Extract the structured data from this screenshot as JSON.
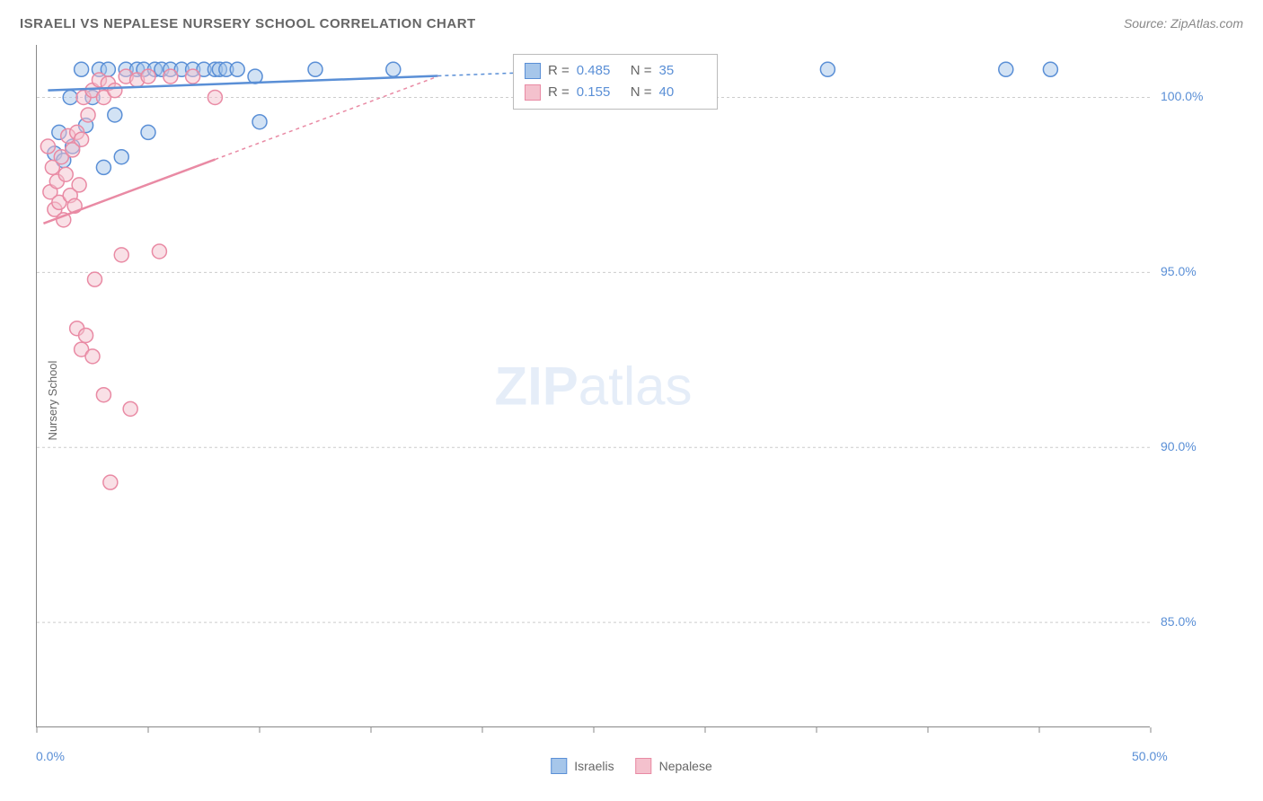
{
  "title": "ISRAELI VS NEPALESE NURSERY SCHOOL CORRELATION CHART",
  "source": "Source: ZipAtlas.com",
  "watermark": {
    "bold": "ZIP",
    "light": "atlas"
  },
  "ylabel": "Nursery School",
  "chart": {
    "type": "scatter",
    "xlim": [
      0,
      50
    ],
    "ylim": [
      82,
      101.5
    ],
    "xticks": [
      0,
      5,
      10,
      15,
      20,
      25,
      30,
      35,
      40,
      45,
      50
    ],
    "xtick_labels": {
      "0": "0.0%",
      "50": "50.0%"
    },
    "yticks": [
      85,
      90,
      95,
      100
    ],
    "ytick_labels": [
      "85.0%",
      "90.0%",
      "95.0%",
      "100.0%"
    ],
    "grid_color": "#cccccc",
    "axis_color": "#888888",
    "background_color": "#ffffff",
    "label_fontsize": 13,
    "tick_fontsize": 14,
    "tick_color": "#5a8fd6",
    "marker_radius": 8,
    "marker_opacity": 0.5,
    "marker_stroke_width": 1.5,
    "series": [
      {
        "name": "Israelis",
        "color_fill": "#a6c6ea",
        "color_stroke": "#5a8fd6",
        "r_value": "0.485",
        "n_value": "35",
        "trend": {
          "x1": 0.5,
          "y1": 100.2,
          "x2": 30,
          "y2": 100.9,
          "dashed_from_x": 18
        },
        "points": [
          [
            0.8,
            98.4
          ],
          [
            1.0,
            99.0
          ],
          [
            1.2,
            98.2
          ],
          [
            1.5,
            100.0
          ],
          [
            1.6,
            98.6
          ],
          [
            2.0,
            100.8
          ],
          [
            2.2,
            99.2
          ],
          [
            2.5,
            100.0
          ],
          [
            2.8,
            100.8
          ],
          [
            3.0,
            98.0
          ],
          [
            3.2,
            100.8
          ],
          [
            3.5,
            99.5
          ],
          [
            3.8,
            98.3
          ],
          [
            4.0,
            100.8
          ],
          [
            4.5,
            100.8
          ],
          [
            4.8,
            100.8
          ],
          [
            5.0,
            99.0
          ],
          [
            5.3,
            100.8
          ],
          [
            5.6,
            100.8
          ],
          [
            6.0,
            100.8
          ],
          [
            6.5,
            100.8
          ],
          [
            7.0,
            100.8
          ],
          [
            7.5,
            100.8
          ],
          [
            8.0,
            100.8
          ],
          [
            8.2,
            100.8
          ],
          [
            8.5,
            100.8
          ],
          [
            9.0,
            100.8
          ],
          [
            9.8,
            100.6
          ],
          [
            10.0,
            99.3
          ],
          [
            12.5,
            100.8
          ],
          [
            16.0,
            100.8
          ],
          [
            35.5,
            100.8
          ],
          [
            43.5,
            100.8
          ],
          [
            45.5,
            100.8
          ]
        ]
      },
      {
        "name": "Nepalese",
        "color_fill": "#f4c1cd",
        "color_stroke": "#e98aa4",
        "r_value": "0.155",
        "n_value": "40",
        "trend": {
          "x1": 0.3,
          "y1": 96.4,
          "x2": 18,
          "y2": 100.6,
          "dashed_from_x": 8
        },
        "points": [
          [
            0.5,
            98.6
          ],
          [
            0.6,
            97.3
          ],
          [
            0.7,
            98.0
          ],
          [
            0.8,
            96.8
          ],
          [
            0.9,
            97.6
          ],
          [
            1.0,
            97.0
          ],
          [
            1.1,
            98.3
          ],
          [
            1.2,
            96.5
          ],
          [
            1.3,
            97.8
          ],
          [
            1.4,
            98.9
          ],
          [
            1.5,
            97.2
          ],
          [
            1.6,
            98.5
          ],
          [
            1.7,
            96.9
          ],
          [
            1.8,
            99.0
          ],
          [
            1.8,
            93.4
          ],
          [
            1.9,
            97.5
          ],
          [
            2.0,
            92.8
          ],
          [
            2.0,
            98.8
          ],
          [
            2.1,
            100.0
          ],
          [
            2.2,
            93.2
          ],
          [
            2.3,
            99.5
          ],
          [
            2.5,
            92.6
          ],
          [
            2.5,
            100.2
          ],
          [
            2.6,
            94.8
          ],
          [
            2.8,
            100.5
          ],
          [
            3.0,
            91.5
          ],
          [
            3.0,
            100.0
          ],
          [
            3.2,
            100.4
          ],
          [
            3.3,
            89.0
          ],
          [
            3.5,
            100.2
          ],
          [
            3.8,
            95.5
          ],
          [
            4.0,
            100.6
          ],
          [
            4.2,
            91.1
          ],
          [
            4.5,
            100.5
          ],
          [
            5.0,
            100.6
          ],
          [
            5.5,
            95.6
          ],
          [
            6.0,
            100.6
          ],
          [
            7.0,
            100.6
          ],
          [
            8.0,
            100.0
          ]
        ]
      }
    ],
    "stats_legend": {
      "r_label": "R =",
      "n_label": "N ="
    },
    "bottom_legend_labels": [
      "Israelis",
      "Nepalese"
    ]
  }
}
